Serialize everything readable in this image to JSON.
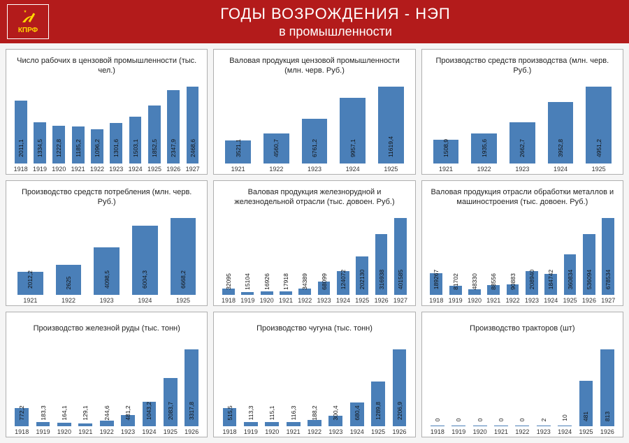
{
  "header": {
    "logo_text": "КПРФ",
    "title_main": "ГОДЫ ВОЗРОЖДЕНИЯ - НЭП",
    "title_sub": "в промышленности",
    "bg_color": "#b31b1b",
    "text_color": "#ffffff",
    "logo_accent": "#ffd700"
  },
  "chart_style": {
    "bar_color": "#4a7fb8",
    "panel_border": "#b0b0b0",
    "panel_bg": "#ffffff",
    "text_color": "#222222",
    "label_fontsize": 9,
    "title_fontsize": 11,
    "value_fontsize": 8.5
  },
  "charts": [
    {
      "title": "Число рабочих в цензовой промышленности (тыс. чел.)",
      "categories": [
        "1918",
        "1919",
        "1920",
        "1921",
        "1922",
        "1923",
        "1924",
        "1925",
        "1926",
        "1927"
      ],
      "values": [
        2011.1,
        1334.5,
        1222.8,
        1185.2,
        1096.2,
        1301.6,
        1503.1,
        1852.5,
        2347.9,
        2468.6
      ],
      "labels": [
        "2011,1",
        "1334,5",
        "1222,8",
        "1185,2",
        "1096,2",
        "1301,6",
        "1503,1",
        "1852,5",
        "2347,9",
        "2468,6"
      ]
    },
    {
      "title": "Валовая продукция цензовой промышленности (млн. черв. Руб.)",
      "categories": [
        "1921",
        "1922",
        "1923",
        "1924",
        "1925"
      ],
      "values": [
        3521.1,
        4560.7,
        6761.2,
        9957.1,
        11619.4
      ],
      "labels": [
        "3521,1",
        "4560,7",
        "6761,2",
        "9957,1",
        "11619,4"
      ]
    },
    {
      "title": "Производство средств производства (млн. черв. Руб.)",
      "categories": [
        "1921",
        "1922",
        "1923",
        "1924",
        "1925"
      ],
      "values": [
        1508.9,
        1935.6,
        2662.7,
        3952.8,
        4951.2
      ],
      "labels": [
        "1508,9",
        "1935,6",
        "2662,7",
        "3952,8",
        "4951,2"
      ]
    },
    {
      "title": "Производство средств потребления (млн. черв. Руб.)",
      "categories": [
        "1921",
        "1922",
        "1923",
        "1924",
        "1925"
      ],
      "values": [
        2012.2,
        2625,
        4098.5,
        6004.3,
        6668.2
      ],
      "labels": [
        "2012,2",
        "2625",
        "4098,5",
        "6004,3",
        "6668,2"
      ]
    },
    {
      "title": "Валовая продукция железнорудной и железнодельной отрасли (тыс. довоен. Руб.)",
      "categories": [
        "1918",
        "1919",
        "1920",
        "1921",
        "1922",
        "1923",
        "1924",
        "1925",
        "1926",
        "1927"
      ],
      "values": [
        32095,
        15104,
        16926,
        17918,
        34389,
        68099,
        124072,
        202130,
        316938,
        401585
      ],
      "labels": [
        "32095",
        "15104",
        "16926",
        "17918",
        "34389",
        "68099",
        "124072",
        "202130",
        "316938",
        "401585"
      ]
    },
    {
      "title": "Валовая продукция отрасли обработки металлов и машиностроения (тыс. довоен. Руб.)",
      "categories": [
        "1918",
        "1919",
        "1920",
        "1921",
        "1922",
        "1923",
        "1924",
        "1925",
        "1926",
        "1927"
      ],
      "values": [
        189267,
        81702,
        48330,
        88556,
        90883,
        208940,
        184742,
        360834,
        536094,
        678534
      ],
      "labels": [
        "189267",
        "81702",
        "48330",
        "88556",
        "90883",
        "208940",
        "184742",
        "360834",
        "536094",
        "678534"
      ]
    },
    {
      "title": "Производство железной руды (тыс. тонн)",
      "categories": [
        "1918",
        "1919",
        "1920",
        "1921",
        "1922",
        "1923",
        "1924",
        "1925",
        "1926"
      ],
      "values": [
        772.2,
        183.3,
        164.1,
        129.1,
        244.6,
        481.2,
        1043.2,
        2083.7,
        3317.8
      ],
      "labels": [
        "772,2",
        "183,3",
        "164,1",
        "129,1",
        "244,6",
        "481,2",
        "1043,2",
        "2083,7",
        "3317,8"
      ]
    },
    {
      "title": "Производство чугуна (тыс. тонн)",
      "categories": [
        "1918",
        "1919",
        "1920",
        "1921",
        "1922",
        "1923",
        "1924",
        "1925",
        "1926"
      ],
      "values": [
        515.5,
        113.3,
        115.1,
        116.3,
        188.2,
        300.4,
        680.4,
        1289.8,
        2206.9
      ],
      "labels": [
        "515,5",
        "113,3",
        "115,1",
        "116,3",
        "188,2",
        "300,4",
        "680,4",
        "1289,8",
        "2206,9"
      ]
    },
    {
      "title": "Производство тракторов (шт)",
      "categories": [
        "1918",
        "1919",
        "1920",
        "1921",
        "1922",
        "1923",
        "1924",
        "1925",
        "1926"
      ],
      "values": [
        0,
        0,
        0,
        0,
        0,
        2,
        10,
        481,
        813
      ],
      "labels": [
        "0",
        "0",
        "0",
        "0",
        "0",
        "2",
        "10",
        "481",
        "813"
      ]
    }
  ]
}
